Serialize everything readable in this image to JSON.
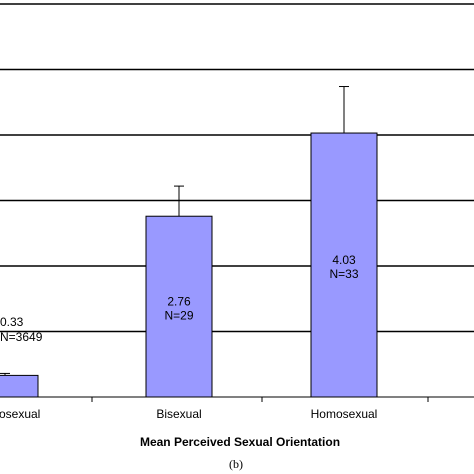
{
  "chart_data": {
    "type": "bar",
    "categories": [
      "Heterosexual",
      "Bisexual",
      "Homosexual"
    ],
    "series": [
      {
        "values": [
          0.33,
          2.76,
          4.03
        ],
        "labels": [
          "0.33",
          "2.76",
          "4.03"
        ],
        "n_labels": [
          "N=3649",
          "N=29",
          "N=33"
        ],
        "error_upper": [
          0.36,
          3.22,
          4.74
        ]
      }
    ],
    "xlabel": "Mean Perceived Sexual Orientation",
    "caption": "(b)",
    "ylim": [
      0,
      7
    ],
    "grid": true,
    "bar_color": "#9999ff",
    "bar_border_color": "#000000"
  }
}
